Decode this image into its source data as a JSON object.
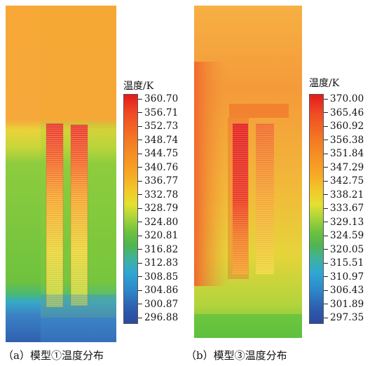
{
  "panel_a": {
    "legend_title": "温度/K",
    "ticks": [
      "360.70",
      "356.71",
      "352.73",
      "348.74",
      "344.75",
      "340.76",
      "336.77",
      "332.78",
      "328.79",
      "324.80",
      "320.81",
      "316.82",
      "312.83",
      "308.85",
      "304.86",
      "300.87",
      "296.88"
    ],
    "caption": "（a）模型①温度分布"
  },
  "panel_b": {
    "legend_title": "温度/K",
    "ticks": [
      "370.00",
      "365.46",
      "360.92",
      "356.38",
      "351.84",
      "347.29",
      "342.75",
      "338.21",
      "333.67",
      "329.13",
      "324.59",
      "320.05",
      "315.51",
      "310.97",
      "306.43",
      "301.89",
      "297.35"
    ],
    "caption": "（b）模型③温度分布"
  },
  "colormap": [
    "#e41a1c",
    "#ef4a24",
    "#f47a24",
    "#f6a623",
    "#f2c82a",
    "#e3e030",
    "#a8d43a",
    "#6cc23e",
    "#4fb550",
    "#3fb2a0",
    "#2fa6d4",
    "#2d86c8",
    "#2d5fb0",
    "#2b4a9c"
  ]
}
